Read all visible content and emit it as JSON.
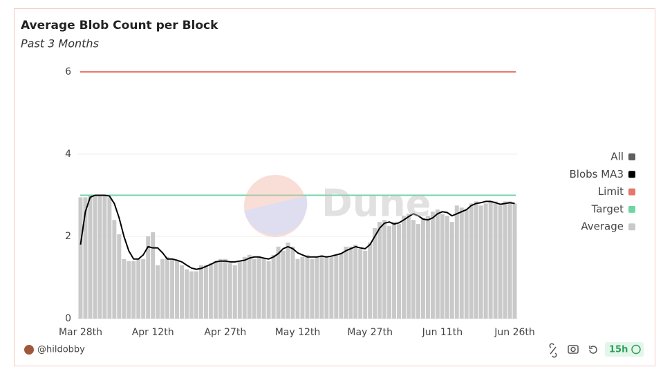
{
  "chart_data": {
    "type": "bar",
    "title": "Average Blob Count per Block",
    "subtitle": "Past 3 Months",
    "watermark": "Dune",
    "categories": [
      "Mar 28th",
      null,
      null,
      null,
      null,
      null,
      null,
      null,
      null,
      null,
      null,
      null,
      null,
      null,
      null,
      "Apr 12th",
      null,
      null,
      null,
      null,
      null,
      null,
      null,
      null,
      null,
      null,
      null,
      null,
      null,
      null,
      "Apr 27th",
      null,
      null,
      null,
      null,
      null,
      null,
      null,
      null,
      null,
      null,
      null,
      null,
      null,
      null,
      "May 12th",
      null,
      null,
      null,
      null,
      null,
      null,
      null,
      null,
      null,
      null,
      null,
      null,
      null,
      null,
      "May 27th",
      null,
      null,
      null,
      null,
      null,
      null,
      null,
      null,
      null,
      null,
      null,
      null,
      null,
      null,
      "Jun 11th",
      null,
      null,
      null,
      null,
      null,
      null,
      null,
      null,
      null,
      null,
      null,
      null,
      null,
      null,
      "Jun 26th"
    ],
    "series": [
      {
        "name": "All",
        "color": "#5f5f5f",
        "kind": "legend-only"
      },
      {
        "name": "Blobs MA3",
        "color": "#000000",
        "kind": "line",
        "values": [
          1.8,
          2.6,
          2.95,
          3.0,
          3.0,
          3.0,
          2.98,
          2.8,
          2.45,
          2.0,
          1.65,
          1.45,
          1.45,
          1.55,
          1.75,
          1.72,
          1.72,
          1.6,
          1.45,
          1.45,
          1.42,
          1.38,
          1.3,
          1.23,
          1.2,
          1.22,
          1.27,
          1.32,
          1.38,
          1.4,
          1.4,
          1.38,
          1.38,
          1.4,
          1.42,
          1.47,
          1.5,
          1.5,
          1.47,
          1.45,
          1.5,
          1.58,
          1.7,
          1.75,
          1.7,
          1.6,
          1.55,
          1.5,
          1.5,
          1.5,
          1.52,
          1.5,
          1.52,
          1.55,
          1.58,
          1.65,
          1.7,
          1.75,
          1.72,
          1.7,
          1.8,
          2.0,
          2.2,
          2.32,
          2.35,
          2.3,
          2.33,
          2.4,
          2.48,
          2.55,
          2.5,
          2.42,
          2.4,
          2.45,
          2.55,
          2.6,
          2.58,
          2.5,
          2.55,
          2.6,
          2.65,
          2.75,
          2.8,
          2.82,
          2.85,
          2.85,
          2.82,
          2.78,
          2.8,
          2.82,
          2.8
        ]
      },
      {
        "name": "Limit",
        "color": "#e8776b",
        "kind": "hline",
        "level": 6
      },
      {
        "name": "Target",
        "color": "#6fd6a2",
        "kind": "hline",
        "level": 3
      },
      {
        "name": "Average",
        "color": "#c9c9c9",
        "kind": "bar",
        "values": [
          2.95,
          2.95,
          3.0,
          3.0,
          3.0,
          3.0,
          2.95,
          2.4,
          2.05,
          1.45,
          1.4,
          1.4,
          1.45,
          1.45,
          2.0,
          2.1,
          1.3,
          1.45,
          1.5,
          1.45,
          1.4,
          1.3,
          1.2,
          1.15,
          1.15,
          1.3,
          1.3,
          1.35,
          1.4,
          1.45,
          1.45,
          1.35,
          1.3,
          1.4,
          1.5,
          1.55,
          1.45,
          1.5,
          1.45,
          1.4,
          1.55,
          1.75,
          1.65,
          1.85,
          1.75,
          1.45,
          1.5,
          1.55,
          1.45,
          1.5,
          1.55,
          1.5,
          1.5,
          1.55,
          1.6,
          1.75,
          1.75,
          1.8,
          1.7,
          1.65,
          1.85,
          2.2,
          2.35,
          2.4,
          2.25,
          2.35,
          2.3,
          2.5,
          2.55,
          2.4,
          2.3,
          2.45,
          2.5,
          2.6,
          2.65,
          2.55,
          2.5,
          2.35,
          2.75,
          2.7,
          2.65,
          2.8,
          2.85,
          2.75,
          2.8,
          2.85,
          2.85,
          2.75,
          2.85,
          2.85,
          2.8
        ]
      }
    ],
    "ylim": [
      0,
      6
    ],
    "yticks": [
      0,
      2,
      4,
      6
    ],
    "grid": true,
    "legend": "right"
  },
  "footer": {
    "author": "@hildobby",
    "age": "15h"
  }
}
